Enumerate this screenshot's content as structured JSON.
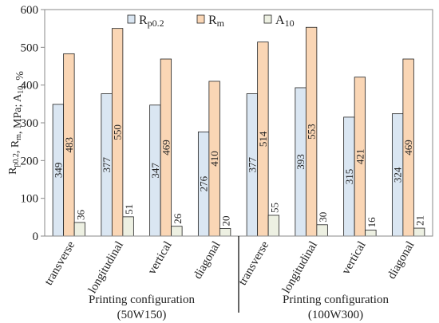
{
  "chart_data": {
    "type": "bar",
    "categories": [
      "transverse",
      "longitudinal",
      "vertical",
      "diagonal",
      "transverse",
      "longitudinal",
      "vertical",
      "diagonal"
    ],
    "groups": [
      {
        "label_line1": "Printing configuration",
        "label_line2": "(50W150)",
        "start": 0,
        "end": 3
      },
      {
        "label_line1": "Printing configuration",
        "label_line2": "(100W300)",
        "start": 4,
        "end": 7
      }
    ],
    "series": [
      {
        "name": "Rp0.2",
        "legend_main": "R",
        "legend_sub": "p0.2",
        "color": "#dae6f2",
        "values": [
          349,
          377,
          347,
          276,
          377,
          393,
          315,
          324
        ]
      },
      {
        "name": "Rm",
        "legend_main": "R",
        "legend_sub": "m",
        "color": "#fad6b5",
        "values": [
          483,
          550,
          469,
          410,
          514,
          553,
          421,
          469
        ]
      },
      {
        "name": "A10",
        "legend_main": "A",
        "legend_sub": "10",
        "color": "#edf0e2",
        "values": [
          36,
          51,
          26,
          20,
          55,
          30,
          16,
          21
        ]
      }
    ],
    "ylabel": {
      "p1": "R",
      "s1": "p0.2",
      "p2": ", R",
      "s2": "m",
      "p3": ", MPa; A",
      "s3": "10",
      "p4": ", %"
    },
    "ylim": [
      0,
      600
    ],
    "yticks": [
      0,
      100,
      200,
      300,
      400,
      500,
      600
    ],
    "grid": false,
    "legend_position": "top-center"
  }
}
